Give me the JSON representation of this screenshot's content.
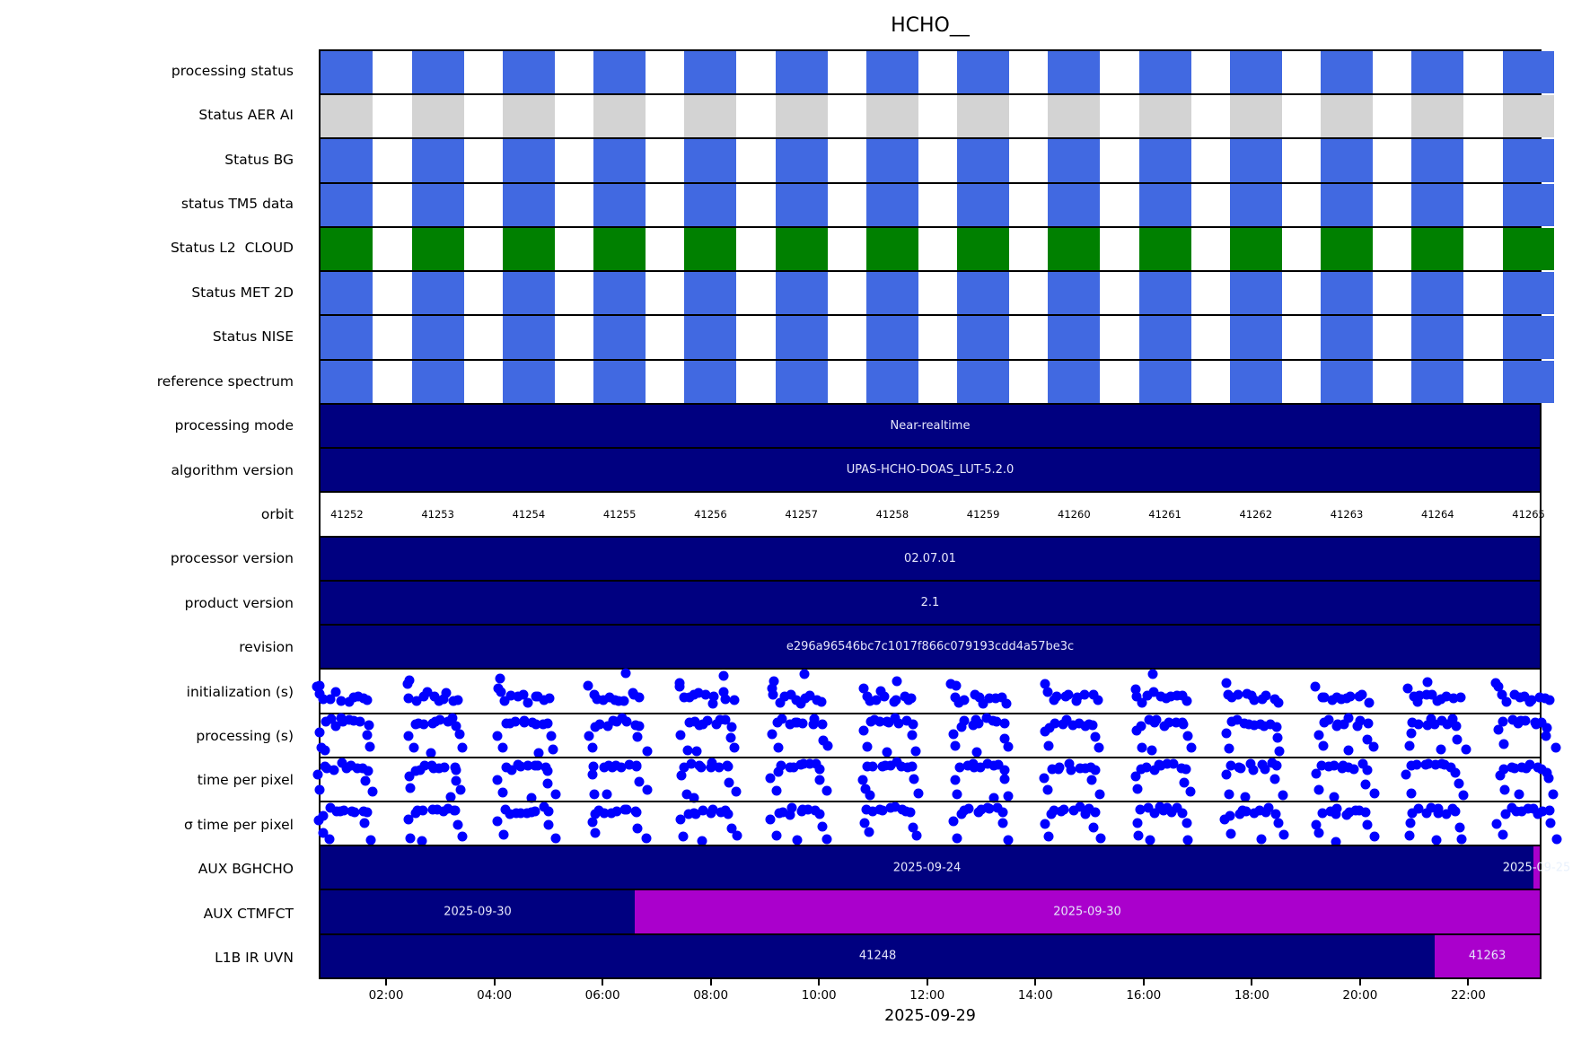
{
  "chart_data": {
    "type": "heatmap",
    "title": "HCHO__",
    "x_axis": {
      "label": "2025-09-29",
      "ticks": [
        "02:00",
        "04:00",
        "06:00",
        "08:00",
        "10:00",
        "12:00",
        "14:00",
        "16:00",
        "18:00",
        "20:00",
        "22:00"
      ],
      "first_tick_frac": 0.0551,
      "tick_spacing_frac": 0.0885
    },
    "orbits": [
      "41252",
      "41253",
      "41254",
      "41255",
      "41256",
      "41257",
      "41258",
      "41259",
      "41260",
      "41261",
      "41262",
      "41263",
      "41264",
      "41265"
    ],
    "layout": {
      "first_center_frac": 0.02166,
      "period_frac": 0.074552,
      "block_width_frac": 0.0426
    },
    "colors": {
      "status_blue": "#4169E1",
      "status_gray": "#D3D3D3",
      "status_green": "#008000",
      "bar_navy": "#000080",
      "bar_purple": "#AA00CC",
      "dot_blue": "#0000FF",
      "bar_text": "#E6E6FA"
    },
    "rows": [
      {
        "label": "processing status",
        "type": "blocks",
        "color": "#4169E1"
      },
      {
        "label": "Status AER AI",
        "type": "blocks",
        "color": "#D3D3D3"
      },
      {
        "label": "Status BG",
        "type": "blocks",
        "color": "#4169E1"
      },
      {
        "label": "status TM5 data",
        "type": "blocks",
        "color": "#4169E1"
      },
      {
        "label": "Status L2  CLOUD",
        "type": "blocks",
        "color": "#008000"
      },
      {
        "label": "Status MET 2D",
        "type": "blocks",
        "color": "#4169E1"
      },
      {
        "label": "Status NISE",
        "type": "blocks",
        "color": "#4169E1"
      },
      {
        "label": "reference spectrum",
        "type": "blocks",
        "color": "#4169E1"
      },
      {
        "label": "processing mode",
        "type": "bar",
        "text": "Near-realtime"
      },
      {
        "label": "algorithm version",
        "type": "bar",
        "text": "UPAS-HCHO-DOAS_LUT-5.2.0"
      },
      {
        "label": "orbit",
        "type": "orbit-numbers"
      },
      {
        "label": "processor version",
        "type": "bar",
        "text": "02.07.01"
      },
      {
        "label": "product version",
        "type": "bar",
        "text": "2.1"
      },
      {
        "label": "revision",
        "type": "bar",
        "text": "e296a96546bc7c1017f866c079193cdd4a57be3c"
      },
      {
        "label": "initialization (s)",
        "type": "scatter",
        "pattern": "init"
      },
      {
        "label": "processing (s)",
        "type": "scatter",
        "pattern": "plateau"
      },
      {
        "label": "time per pixel",
        "type": "scatter",
        "pattern": "plateau"
      },
      {
        "label": "σ time per pixel",
        "type": "scatter",
        "pattern": "plateau"
      },
      {
        "label": "AUX BGHCHO",
        "type": "segments",
        "segments": [
          {
            "text": "2025-09-24",
            "color": "#000080",
            "start": 0,
            "end": 0.9949
          },
          {
            "text": "2025-09-25",
            "color": "#AA00CC",
            "start": 0.9949,
            "end": 1,
            "ghost": true
          }
        ]
      },
      {
        "label": "AUX CTMFCT",
        "type": "segments",
        "segments": [
          {
            "text": "2025-09-30",
            "color": "#000080",
            "start": 0,
            "end": 0.2577
          },
          {
            "text": "2025-09-30",
            "color": "#AA00CC",
            "start": 0.2577,
            "end": 1
          }
        ]
      },
      {
        "label": "L1B IR UVN",
        "type": "segments",
        "segments": [
          {
            "text": "41248",
            "color": "#000080",
            "start": 0,
            "end": 0.914
          },
          {
            "text": "41263",
            "color": "#AA00CC",
            "start": 0.914,
            "end": 1
          }
        ]
      }
    ],
    "scatter_patterns": {
      "plateau": [
        [
          0.18,
          0.45
        ],
        [
          0.24,
          0.24
        ],
        [
          0.3,
          0.2
        ],
        [
          0.36,
          0.22
        ],
        [
          0.42,
          0.18
        ],
        [
          0.48,
          0.21
        ],
        [
          0.54,
          0.17
        ],
        [
          0.6,
          0.21
        ],
        [
          0.66,
          0.18
        ],
        [
          0.71,
          0.26
        ],
        [
          0.22,
          0.78
        ],
        [
          0.72,
          0.55
        ],
        [
          0.78,
          0.82
        ]
      ],
      "init": [
        [
          0.17,
          0.38
        ],
        [
          0.21,
          0.6
        ],
        [
          0.26,
          0.72
        ],
        [
          0.32,
          0.64
        ],
        [
          0.38,
          0.58
        ],
        [
          0.44,
          0.66
        ],
        [
          0.5,
          0.74
        ],
        [
          0.56,
          0.68
        ],
        [
          0.62,
          0.6
        ],
        [
          0.68,
          0.66
        ],
        [
          0.74,
          0.72
        ]
      ]
    },
    "seed": 42
  }
}
